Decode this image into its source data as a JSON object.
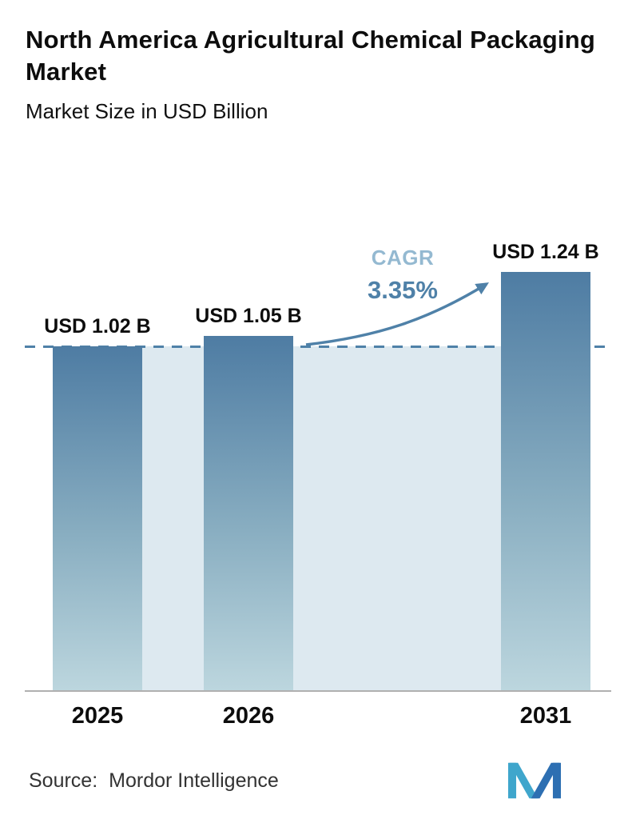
{
  "header": {
    "title": "North America Agricultural Chemical Packaging Market",
    "subtitle": "Market Size in USD Billion"
  },
  "chart_data": {
    "type": "bar",
    "categories": [
      "2025",
      "2026",
      "2031"
    ],
    "values": [
      1.02,
      1.05,
      1.24
    ],
    "bar_labels": [
      "USD 1.02 B",
      "USD 1.05 B",
      "USD 1.24 B"
    ],
    "title": "North America Agricultural Chemical Packaging Market",
    "subtitle": "Market Size in USD Billion",
    "xlabel": "",
    "ylabel": "Market Size in USD Billion",
    "ylim": [
      0,
      1.33
    ],
    "grid": false,
    "legend": false,
    "annotation": {
      "label": "CAGR",
      "value": "3.35%"
    },
    "reference_line": {
      "value": 1.02,
      "style": "dashed"
    },
    "colors": {
      "bar_top": "#4e7ca3",
      "bar_bottom": "#bcd6de",
      "band": "#dde9f0",
      "accent": "#4f81a8",
      "cagr_label": "#94b9d1"
    }
  },
  "footer": {
    "source_label": "Source:",
    "source_value": "Mordor Intelligence",
    "logo": "mordor-intelligence-logo"
  }
}
